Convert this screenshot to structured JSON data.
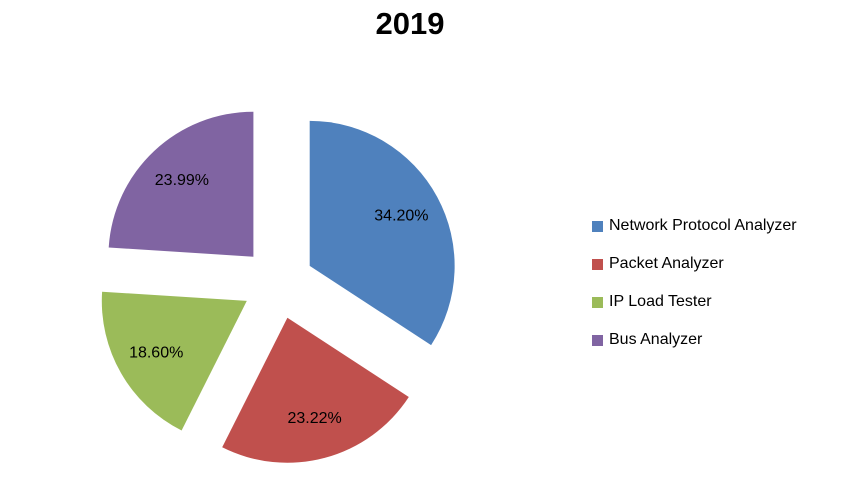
{
  "title": "2019",
  "chart_data": {
    "type": "pie",
    "title": "2019",
    "categories": [
      "Network Protocol Analyzer",
      "Packet Analyzer",
      "IP Load Tester",
      "Bus Analyzer"
    ],
    "values": [
      34.2,
      23.22,
      18.6,
      23.99
    ],
    "labels": [
      "34.20%",
      "23.22%",
      "18.60%",
      "23.99%"
    ],
    "colors": [
      "#4F81BD",
      "#C0504D",
      "#9BBB59",
      "#8064A2"
    ],
    "start_angle_deg": 0,
    "direction": "clockwise",
    "exploded": true,
    "legend_position": "right",
    "background": "#FFFFFF",
    "label_color": "#000000"
  },
  "legend": {
    "items": [
      {
        "label": "Network Protocol Analyzer",
        "color": "#4F81BD"
      },
      {
        "label": "Packet Analyzer",
        "color": "#C0504D"
      },
      {
        "label": "IP Load Tester",
        "color": "#9BBB59"
      },
      {
        "label": "Bus Analyzer",
        "color": "#8064A2"
      }
    ]
  }
}
